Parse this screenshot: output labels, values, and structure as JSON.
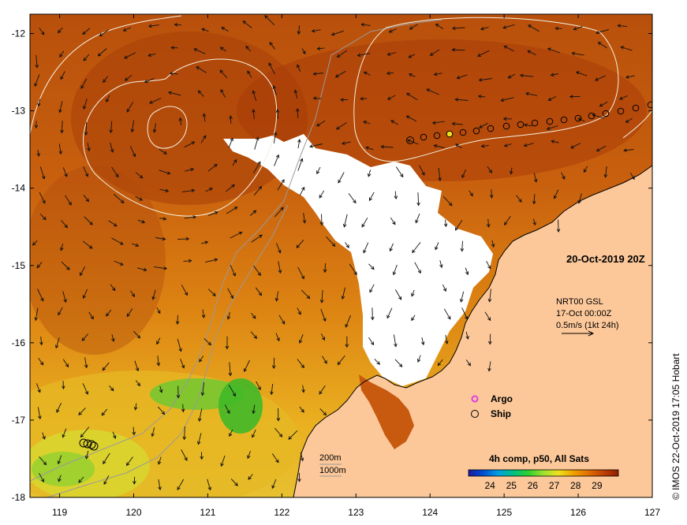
{
  "map": {
    "title": "20-Oct-2019 20Z",
    "credit": "© IMOS 22-Oct-2019 17:05 Hobart",
    "x_ticks": [
      "119",
      "120",
      "121",
      "122",
      "123",
      "124",
      "125",
      "126",
      "127"
    ],
    "y_ticks": [
      "-12",
      "-13",
      "-14",
      "-15",
      "-16",
      "-17",
      "-18"
    ],
    "lon_range": [
      118.6,
      127
    ],
    "lat_range": [
      -18,
      -11.75
    ]
  },
  "current_info": {
    "line1": "NRT00 GSL",
    "line2": "17-Oct 00:00Z",
    "line3": "0.5m/s (1kt 24h)"
  },
  "legend": {
    "argo_label": "Argo",
    "ship_label": "Ship",
    "argo_color": "#e040e0"
  },
  "depth_legend": {
    "shallow": "200m",
    "deep": "1000m"
  },
  "colorbar": {
    "title": "4h comp, p50, All Sats",
    "ticks": [
      "24",
      "25",
      "26",
      "27",
      "28",
      "29"
    ],
    "colors": [
      "#1a1aa0",
      "#0050d0",
      "#00a0e0",
      "#00c080",
      "#30d030",
      "#a0e030",
      "#f0e020",
      "#f0a000",
      "#e07000",
      "#c04000",
      "#902000"
    ]
  },
  "colors": {
    "land": "#fcc89a",
    "cloud": "#ffffff",
    "warm": "#c85a10",
    "hot": "#a83c08",
    "mid": "#e08a10",
    "cool": "#f0c020",
    "green": "#40c020"
  }
}
